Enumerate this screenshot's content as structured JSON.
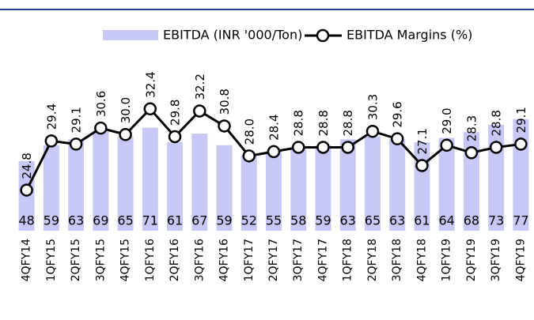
{
  "chart_data": {
    "type": "bar_line",
    "categories": [
      "4QFY14",
      "1QFY15",
      "2QFY15",
      "3QFY15",
      "4QFY15",
      "1QFY16",
      "2QFY16",
      "3QFY16",
      "4QFY16",
      "1QFY17",
      "2QFY17",
      "3QFY17",
      "4QFY17",
      "1QFY18",
      "2QFY18",
      "3QFY18",
      "4QFY18",
      "1QFY19",
      "2QFY19",
      "3QFY19",
      "4QFY19"
    ],
    "series": [
      {
        "name": "EBITDA (INR '000/Ton)",
        "type": "bar",
        "color": "#c8c8f6",
        "values": [
          48,
          59,
          63,
          69,
          65,
          71,
          61,
          67,
          59,
          52,
          55,
          58,
          59,
          63,
          65,
          63,
          61,
          64,
          68,
          73,
          77
        ]
      },
      {
        "name": "EBITDA Margins (%)",
        "type": "line",
        "axis": "y2",
        "color": "#000000",
        "values": [
          24.8,
          29.4,
          29.1,
          30.6,
          30.0,
          32.4,
          29.8,
          32.2,
          30.8,
          28.0,
          28.4,
          28.8,
          28.8,
          28.8,
          30.3,
          29.6,
          27.1,
          29.0,
          28.3,
          28.8,
          29.1
        ],
        "value_labels": [
          "24.8",
          "29.4",
          "29.1",
          "30.6",
          "30.0",
          "32.4",
          "29.8",
          "32.2",
          "30.8",
          "28.0",
          "28.4",
          "28.8",
          "28.8",
          "28.8",
          "30.3",
          "29.6",
          "27.1",
          "29.0",
          "28.3",
          "28.8",
          "29.1"
        ]
      }
    ],
    "ylim": [
      0,
      140
    ],
    "y2lim": [
      21,
      40
    ],
    "legend": "top"
  }
}
